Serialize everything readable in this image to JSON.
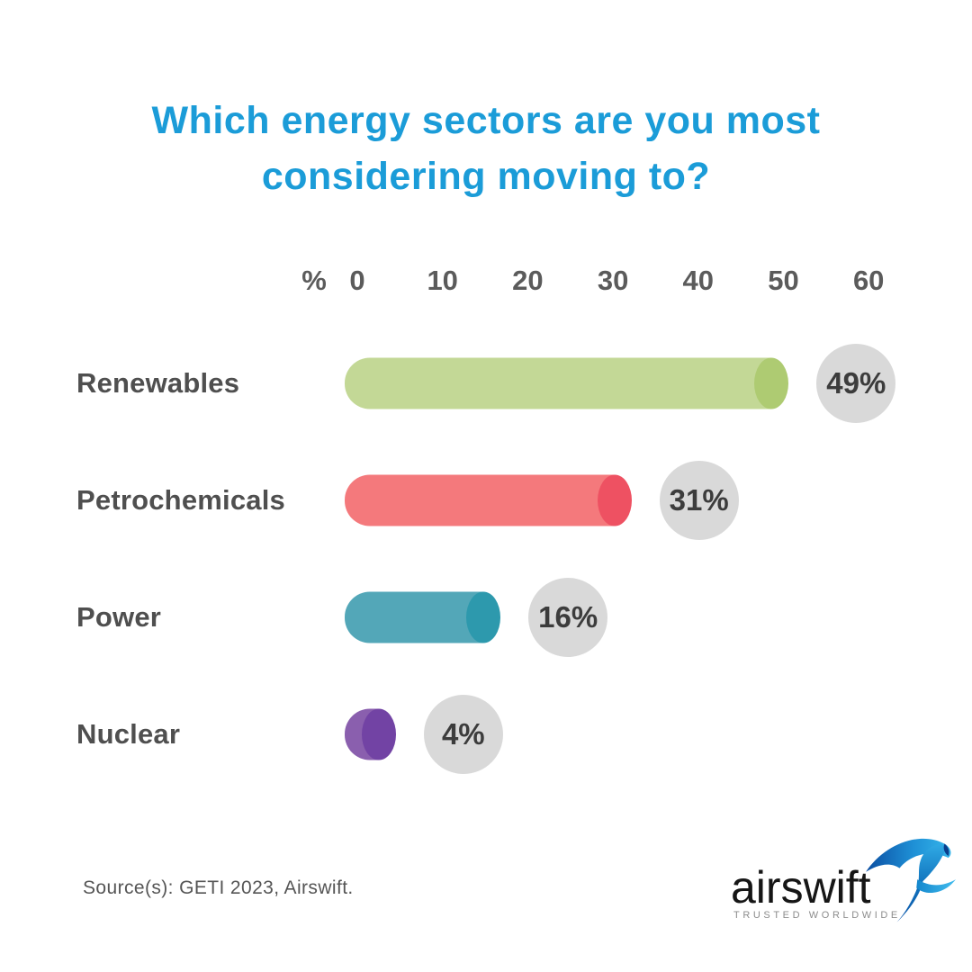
{
  "title": "Which energy sectors are you most considering moving to?",
  "source_note": "Source(s): GETI 2023, Airswift.",
  "logo": {
    "wordmark": "airswift",
    "tagline": "TRUSTED WORLDWIDE",
    "icon": "swift-bird-icon"
  },
  "colors": {
    "title_text": "#1b9cd8",
    "axis_text": "#5b5b5b",
    "label_text": "#4f4f4f",
    "badge_bg": "#d9d9d9",
    "badge_text": "#3c3c3c",
    "background": "#ffffff"
  },
  "chart_data": {
    "type": "bar",
    "orientation": "horizontal",
    "title": "Which energy sectors are you most considering moving to?",
    "unit_label": "%",
    "categories": [
      "Renewables",
      "Petrochemicals",
      "Power",
      "Nuclear"
    ],
    "values": [
      49,
      31,
      16,
      4
    ],
    "value_labels": [
      "49%",
      "31%",
      "16%",
      "4%"
    ],
    "bar_colors": [
      "#c3d896",
      "#f4797c",
      "#53a7b8",
      "#8a5fae"
    ],
    "bar_cap_colors": [
      "#aecb72",
      "#ee5162",
      "#2d99ad",
      "#7243a4"
    ],
    "x_ticks": [
      0,
      10,
      20,
      30,
      40,
      50,
      60
    ],
    "xlim": [
      0,
      60
    ],
    "grid": false,
    "legend": false,
    "value_badge_style": "gray-circle"
  }
}
